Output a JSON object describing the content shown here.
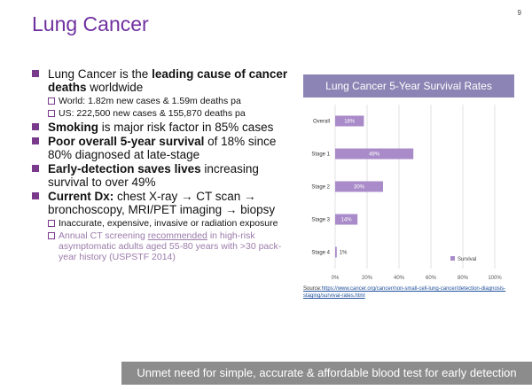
{
  "slide": {
    "title": "Lung Cancer",
    "page_number": "9",
    "banner": "Unmet need for simple, accurate & affordable blood test for early detection",
    "source_label": "Source:",
    "source_url": "https://www.cancer.org/cancer/non-small-cell-lung-cancer/detection-diagnosis-staging/survival-rates.html"
  },
  "bullets": {
    "b1": {
      "pre": "Lung Cancer is the ",
      "bold": "leading cause of cancer deaths",
      "post": " worldwide"
    },
    "b1_sub1": "World: 1.82m new cases & 1.59m deaths pa",
    "b1_sub2": "US: 222,500 new cases & 155,870 deaths pa",
    "b2": {
      "bold": "Smoking",
      "post": " is major risk factor in 85% cases"
    },
    "b3": {
      "bold": "Poor overall 5-year survival",
      "post": " of 18% since 80% diagnosed at late-stage"
    },
    "b4": {
      "bold": "Early-detection saves lives",
      "post": " increasing survival to over 49%"
    },
    "b5": {
      "bold": "Current Dx:",
      "post": " chest X-ray → CT scan → bronchoscopy, MRI/PET imaging → biopsy"
    },
    "b5_sub1": "Inaccurate, expensive, invasive or radiation exposure",
    "b5_sub2_pre": "Annual CT screening ",
    "b5_sub2_link": "recommended",
    "b5_sub2_post": " in high-risk asymptomatic adults aged 55-80 years with >30 pack-year history (USPSTF 2014)"
  },
  "chart_data": {
    "type": "bar",
    "orientation": "horizontal",
    "title": "Lung Cancer 5-Year Survival Rates",
    "categories": [
      "Overall",
      "Stage 1",
      "Stage 2",
      "Stage 3",
      "Stage 4"
    ],
    "series": [
      {
        "name": "Survival",
        "values": [
          18,
          49,
          30,
          14,
          1
        ]
      }
    ],
    "data_labels": [
      "18%",
      "49%",
      "30%",
      "14%",
      "1%"
    ],
    "x_ticks": [
      "0%",
      "20%",
      "40%",
      "60%",
      "80%",
      "100%"
    ],
    "xlim": [
      0,
      100
    ],
    "grid": true,
    "legend_position": "bottom-right",
    "bar_color": "#a98bc9"
  }
}
